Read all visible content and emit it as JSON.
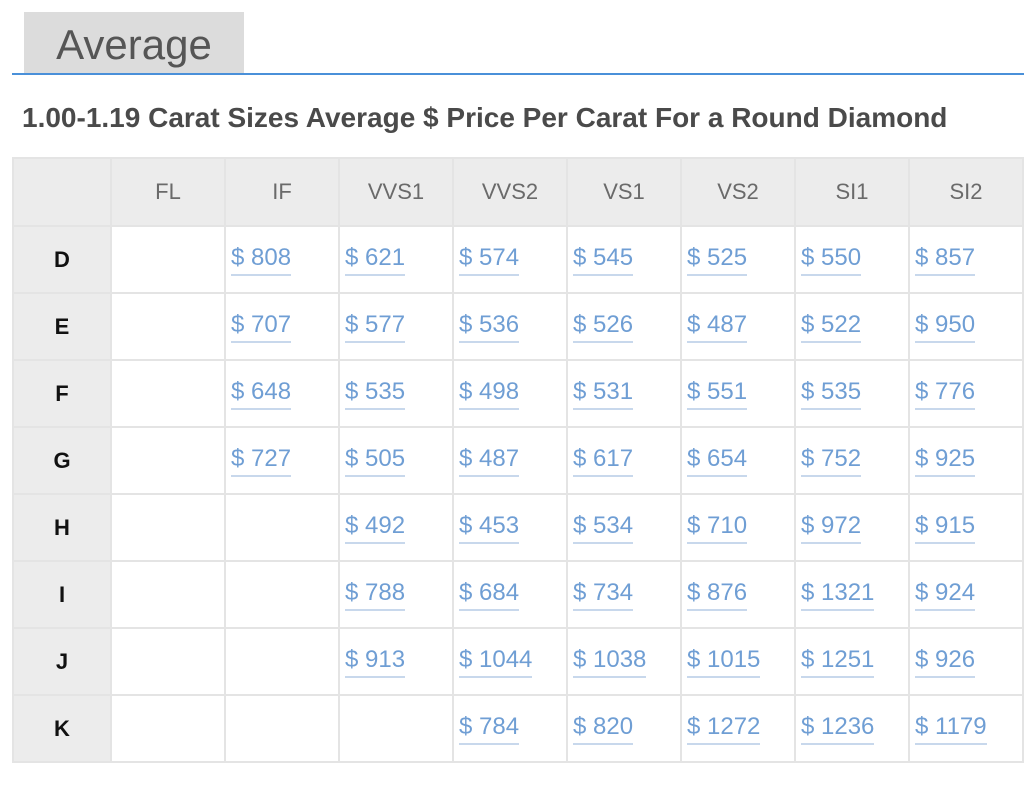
{
  "tab": {
    "label": "Average"
  },
  "table": {
    "title": "1.00-1.19 Carat Sizes Average $ Price Per Carat For a Round Diamond",
    "corner": "",
    "columns": [
      "FL",
      "IF",
      "VVS1",
      "VVS2",
      "VS1",
      "VS2",
      "SI1",
      "SI2"
    ],
    "rows": [
      {
        "color": "D",
        "cells": [
          "",
          "$ 808",
          "$ 621",
          "$ 574",
          "$ 545",
          "$ 525",
          "$ 550",
          "$ 857"
        ]
      },
      {
        "color": "E",
        "cells": [
          "",
          "$ 707",
          "$ 577",
          "$ 536",
          "$ 526",
          "$ 487",
          "$ 522",
          "$ 950"
        ]
      },
      {
        "color": "F",
        "cells": [
          "",
          "$ 648",
          "$ 535",
          "$ 498",
          "$ 531",
          "$ 551",
          "$ 535",
          "$ 776"
        ]
      },
      {
        "color": "G",
        "cells": [
          "",
          "$ 727",
          "$ 505",
          "$ 487",
          "$ 617",
          "$ 654",
          "$ 752",
          "$ 925"
        ]
      },
      {
        "color": "H",
        "cells": [
          "",
          "",
          "$ 492",
          "$ 453",
          "$ 534",
          "$ 710",
          "$ 972",
          "$ 915"
        ]
      },
      {
        "color": "I",
        "cells": [
          "",
          "",
          "$ 788",
          "$ 684",
          "$ 734",
          "$ 876",
          "$ 1321",
          "$ 924"
        ]
      },
      {
        "color": "J",
        "cells": [
          "",
          "",
          "$ 913",
          "$ 1044",
          "$ 1038",
          "$ 1015",
          "$ 1251",
          "$ 926"
        ]
      },
      {
        "color": "K",
        "cells": [
          "",
          "",
          "",
          "$ 784",
          "$ 820",
          "$ 1272",
          "$ 1236",
          "$ 1179"
        ]
      }
    ]
  },
  "colors": {
    "link": "#6f9ed4",
    "tab_underline": "#4a90d9",
    "header_bg": "#ececec"
  }
}
